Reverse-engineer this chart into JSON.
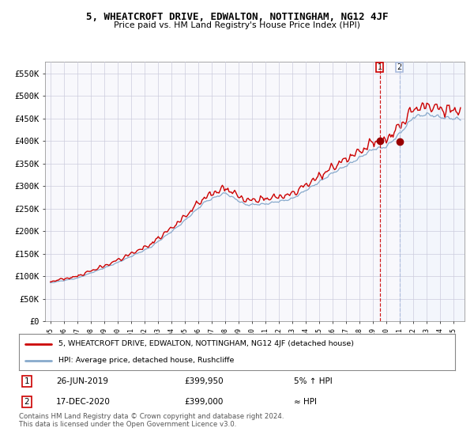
{
  "title": "5, WHEATCROFT DRIVE, EDWALTON, NOTTINGHAM, NG12 4JF",
  "subtitle": "Price paid vs. HM Land Registry's House Price Index (HPI)",
  "legend_line1": "5, WHEATCROFT DRIVE, EDWALTON, NOTTINGHAM, NG12 4JF (detached house)",
  "legend_line2": "HPI: Average price, detached house, Rushcliffe",
  "transaction1_date": "26-JUN-2019",
  "transaction1_price": "£399,950",
  "transaction1_hpi": "5% ↑ HPI",
  "transaction2_date": "17-DEC-2020",
  "transaction2_price": "£399,000",
  "transaction2_hpi": "≈ HPI",
  "footer": "Contains HM Land Registry data © Crown copyright and database right 2024.\nThis data is licensed under the Open Government Licence v3.0.",
  "red_line_color": "#cc0000",
  "blue_line_color": "#88aacc",
  "marker_color": "#990000",
  "vline1_color": "#cc0000",
  "vline2_color": "#aabbdd",
  "shade_color": "#ddeeff",
  "background_color": "#f8f8fc",
  "grid_color": "#ccccdd",
  "ylim": [
    0,
    575000
  ],
  "yticks": [
    0,
    50000,
    100000,
    150000,
    200000,
    250000,
    300000,
    350000,
    400000,
    450000,
    500000,
    550000
  ],
  "year_start": 1995,
  "year_end": 2025,
  "transaction1_year": 2019.49,
  "transaction2_year": 2020.96,
  "transaction1_value": 399950,
  "transaction2_value": 399000
}
